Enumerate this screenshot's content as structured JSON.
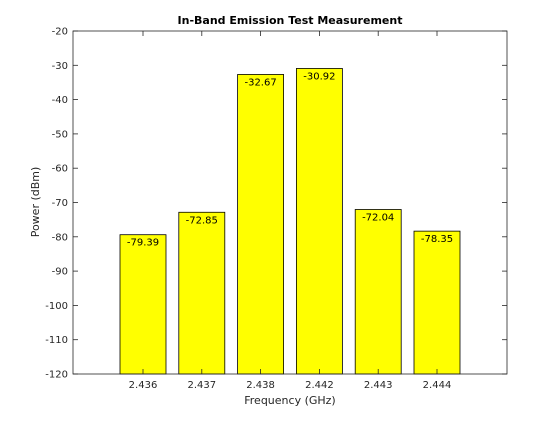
{
  "chart_data": {
    "type": "bar",
    "title": "In-Band Emission Test Measurement",
    "xlabel": "Frequency (GHz)",
    "ylabel": "Power (dBm)",
    "categories": [
      "2.436",
      "2.437",
      "2.438",
      "2.442",
      "2.443",
      "2.444"
    ],
    "values": [
      -79.39,
      -72.85,
      -32.67,
      -30.92,
      -72.04,
      -78.35
    ],
    "data_labels": [
      "-79.39",
      "-72.85",
      "-32.67",
      "-30.92",
      "-72.04",
      "-78.35"
    ],
    "ylim": [
      -120,
      -20
    ],
    "yticks": [
      -20,
      -30,
      -40,
      -50,
      -60,
      -70,
      -80,
      -90,
      -100,
      -110,
      -120
    ],
    "grid": false,
    "legend": "none",
    "bar_color": "#ffff00",
    "edge_color": "#000000"
  }
}
